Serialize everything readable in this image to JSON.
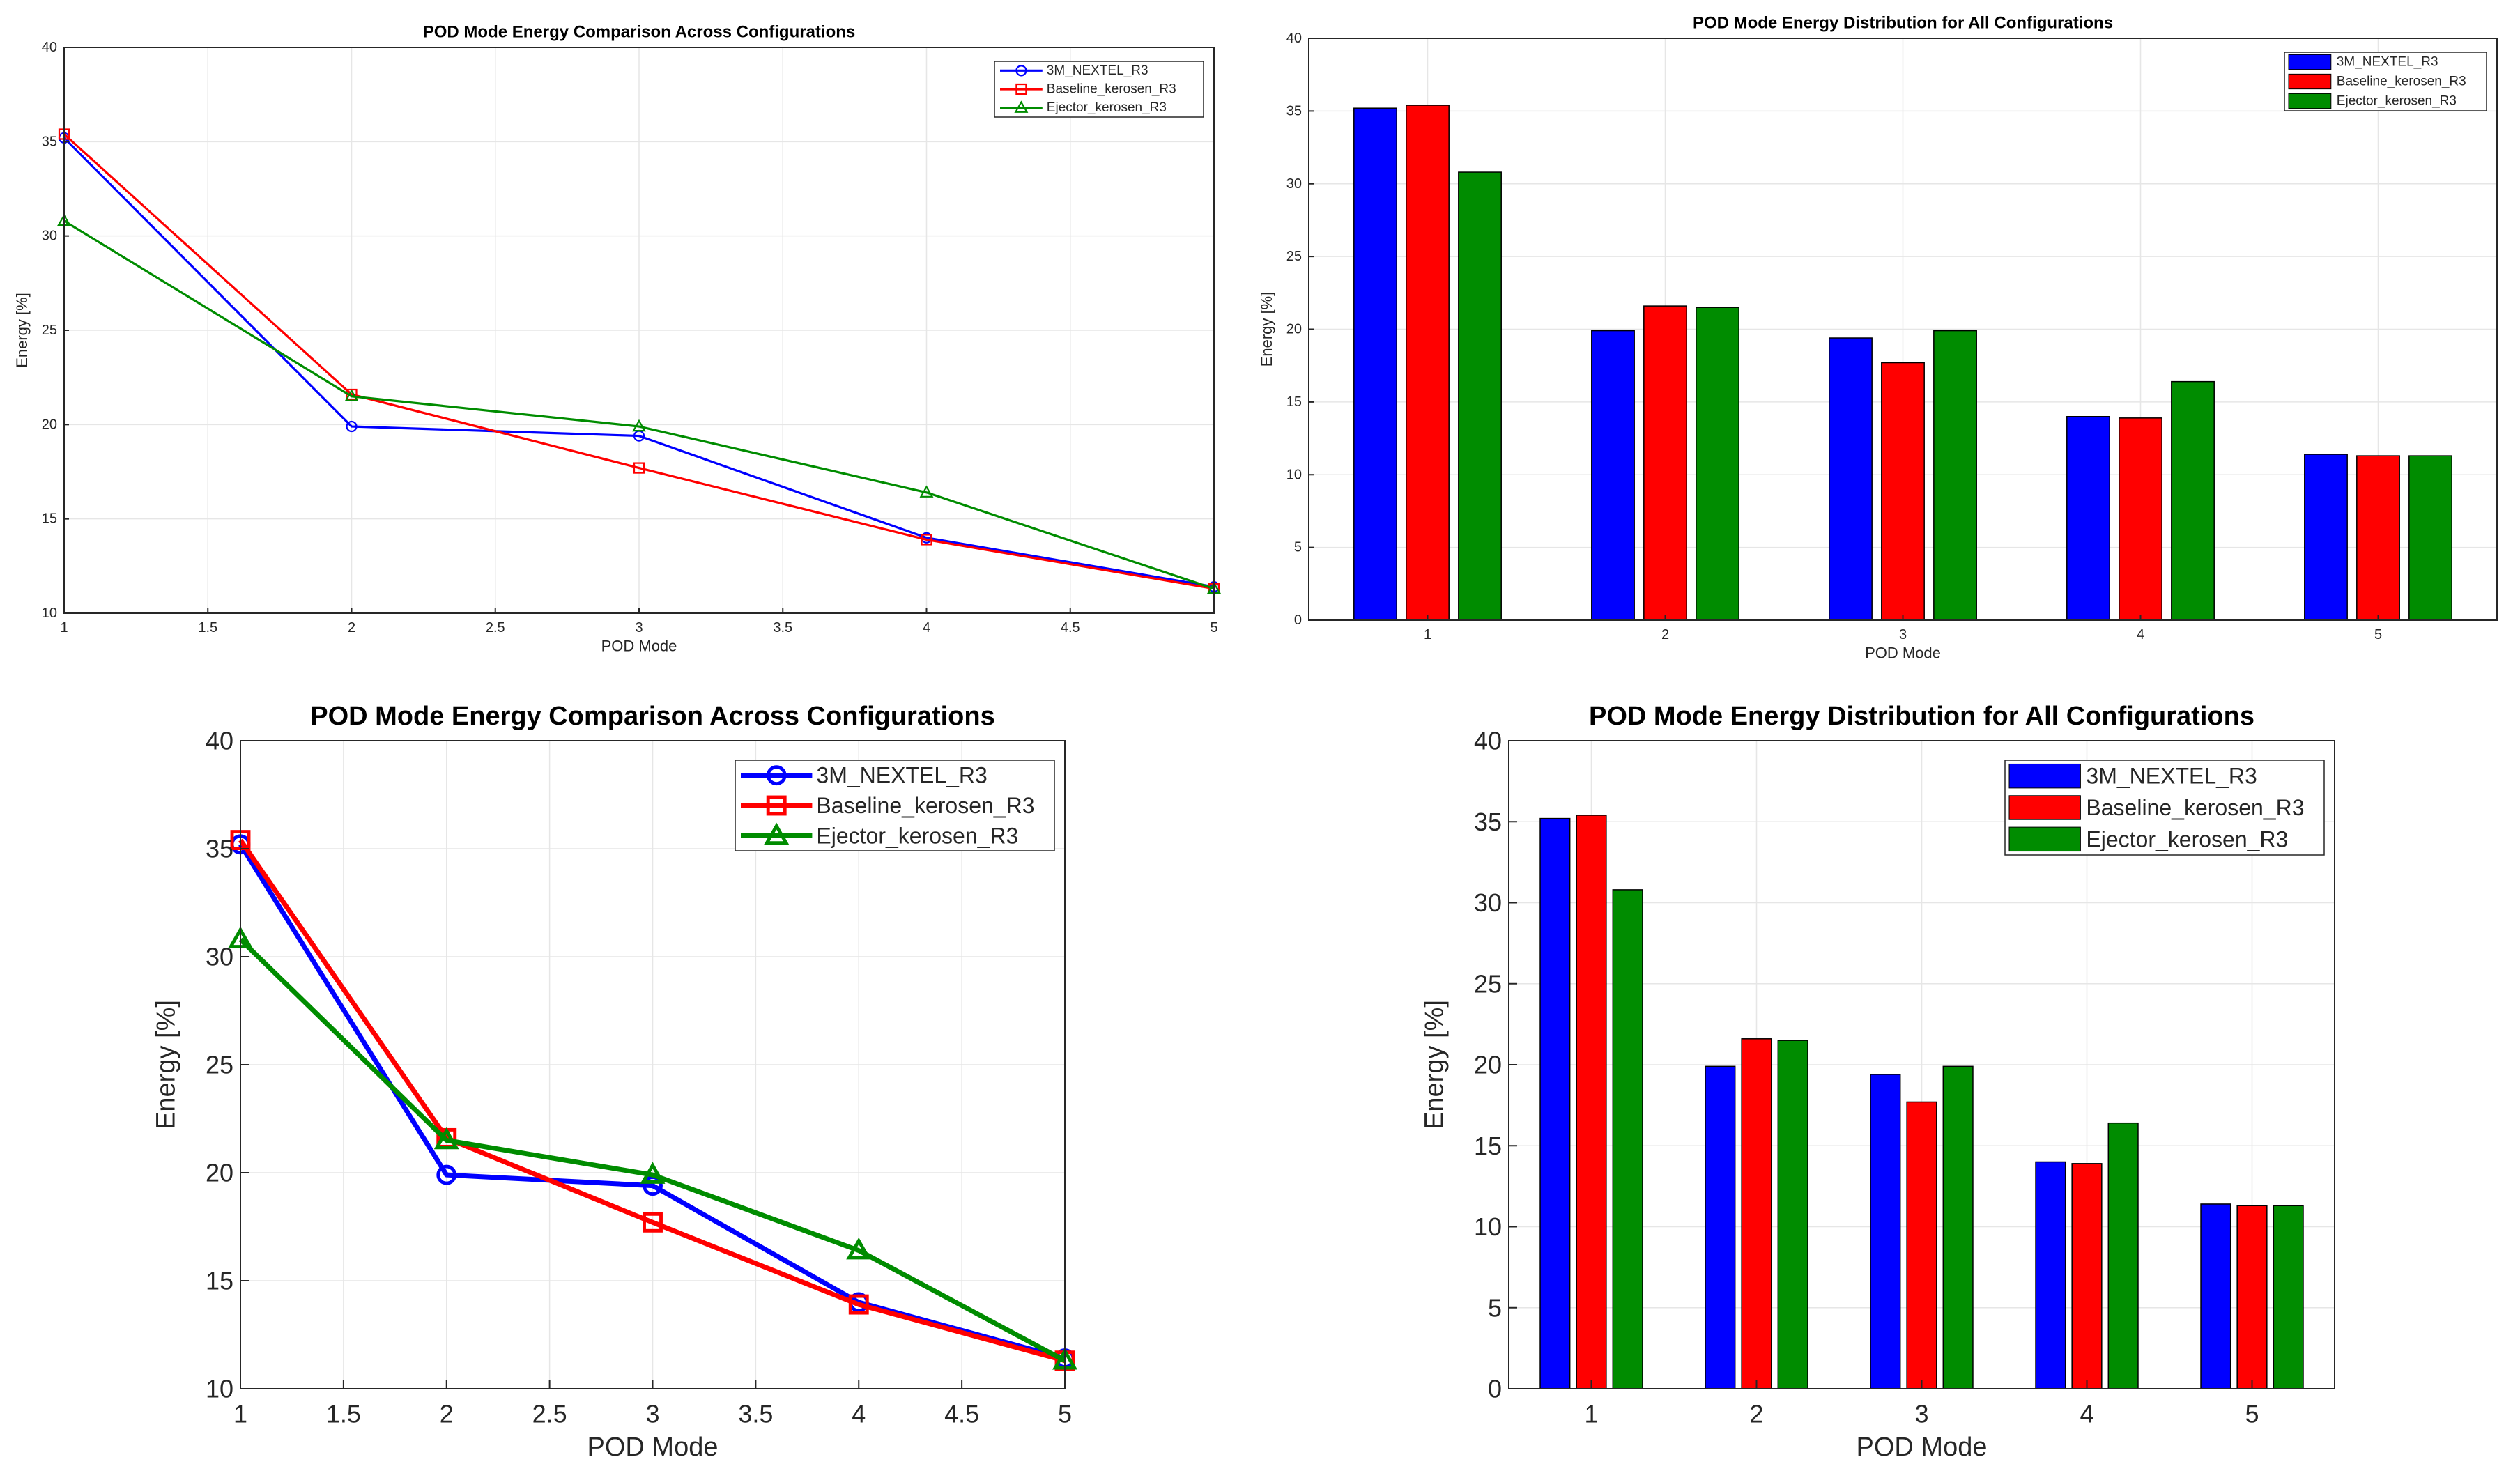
{
  "colors": {
    "series": [
      "#0000ff",
      "#ff0000",
      "#008c00"
    ],
    "grid": "#e6e6e6",
    "axis": "#262626"
  },
  "chart_data": [
    {
      "type": "line",
      "title": "POD Mode Energy Comparison Across Configurations",
      "xlabel": "POD Mode",
      "ylabel": "Energy [%]",
      "xlim": [
        1,
        5
      ],
      "ylim": [
        10,
        40
      ],
      "xticks": [
        "1",
        "1.5",
        "2",
        "2.5",
        "3",
        "3.5",
        "4",
        "4.5",
        "5"
      ],
      "yticks": [
        "10",
        "15",
        "20",
        "25",
        "30",
        "35",
        "40"
      ],
      "x": [
        1,
        2,
        3,
        4,
        5
      ],
      "legend_position": "top-right",
      "grid": true,
      "series": [
        {
          "name": "3M_NEXTEL_R3",
          "values": [
            35.2,
            19.9,
            19.4,
            14.0,
            11.4
          ],
          "marker": "circle"
        },
        {
          "name": "Baseline_kerosen_R3",
          "values": [
            35.4,
            21.6,
            17.7,
            13.9,
            11.3
          ],
          "marker": "square"
        },
        {
          "name": "Ejector_kerosen_R3",
          "values": [
            30.8,
            21.5,
            19.9,
            16.4,
            11.3
          ],
          "marker": "triangle"
        }
      ]
    },
    {
      "type": "bar",
      "title": "POD Mode Energy Distribution for All Configurations",
      "xlabel": "POD Mode",
      "ylabel": "Energy [%]",
      "ylim": [
        0,
        40
      ],
      "yticks": [
        "0",
        "5",
        "10",
        "15",
        "20",
        "25",
        "30",
        "35",
        "40"
      ],
      "categories": [
        "1",
        "2",
        "3",
        "4",
        "5"
      ],
      "legend_position": "top-right",
      "grid": true,
      "series": [
        {
          "name": "3M_NEXTEL_R3",
          "values": [
            35.2,
            19.9,
            19.4,
            14.0,
            11.4
          ]
        },
        {
          "name": "Baseline_kerosen_R3",
          "values": [
            35.4,
            21.6,
            17.7,
            13.9,
            11.3
          ]
        },
        {
          "name": "Ejector_kerosen_R3",
          "values": [
            30.8,
            21.5,
            19.9,
            16.4,
            11.3
          ]
        }
      ]
    }
  ]
}
